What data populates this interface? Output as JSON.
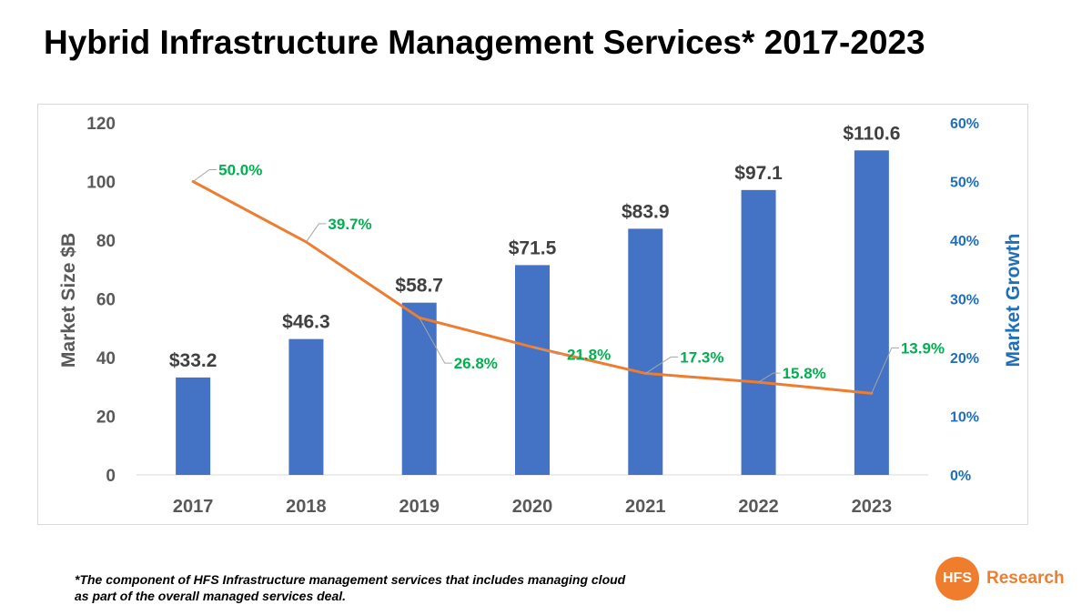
{
  "title": "Hybrid Infrastructure Management Services* 2017-2023",
  "footnote_line1": "*The component of HFS Infrastructure management services that includes managing cloud",
  "footnote_line2": "as part of the overall managed services deal.",
  "logo": {
    "mark": "HFS",
    "text": "Research"
  },
  "colors": {
    "bars": "#4472c4",
    "line": "#ed7d31",
    "growth_labels": "#00b050",
    "right_axis": "#1f6fb9",
    "axis_text": "#595959"
  },
  "chart_data": {
    "type": "bar",
    "title": "Hybrid Infrastructure Management Services* 2017-2023",
    "categories": [
      "2017",
      "2018",
      "2019",
      "2020",
      "2021",
      "2022",
      "2023"
    ],
    "series": [
      {
        "name": "Market Size $B",
        "type": "bar",
        "axis": "left",
        "values": [
          33.2,
          46.3,
          58.7,
          71.5,
          83.9,
          97.1,
          110.6
        ],
        "labels": [
          "$33.2",
          "$46.3",
          "$58.7",
          "$71.5",
          "$83.9",
          "$97.1",
          "$110.6"
        ]
      },
      {
        "name": "Market Growth",
        "type": "line",
        "axis": "right",
        "values": [
          50.0,
          39.7,
          26.8,
          21.8,
          17.3,
          15.8,
          13.9
        ],
        "labels": [
          "50.0%",
          "39.7%",
          "26.8%",
          "21.8%",
          "17.3%",
          "15.8%",
          "13.9%"
        ]
      }
    ],
    "ylabel": "Market Size $B",
    "ylim": [
      0,
      120
    ],
    "yticks": [
      "0",
      "20",
      "40",
      "60",
      "80",
      "100",
      "120"
    ],
    "y2label": "Market Growth",
    "y2lim": [
      0,
      60
    ],
    "y2ticks": [
      "0%",
      "10%",
      "20%",
      "30%",
      "40%",
      "50%",
      "60%"
    ],
    "grid": false
  }
}
